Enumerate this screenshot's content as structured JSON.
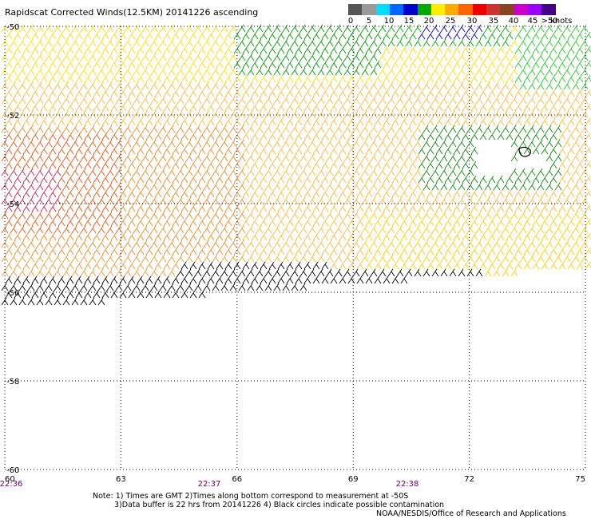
{
  "title": "Rapidscat Corrected Winds(12.5KM) 20141226 ascending",
  "legend": {
    "colors": [
      "#555555",
      "#999999",
      "#00ddff",
      "#0066ff",
      "#0000cc",
      "#00aa00",
      "#ffee00",
      "#ffaa00",
      "#ff6600",
      "#ee0000",
      "#cc3333",
      "#884422",
      "#cc00cc",
      "#9900ff",
      "#440088"
    ],
    "labels": [
      "0",
      "5",
      "10",
      "15",
      "20",
      "25",
      "30",
      "35",
      "40",
      "45",
      ">50"
    ],
    "units": "knots"
  },
  "map": {
    "lat_labels": [
      "-50",
      "-52",
      "-54",
      "-56",
      "-58",
      "-60"
    ],
    "lon_labels": [
      "60",
      "63",
      "66",
      "69",
      "72",
      "75"
    ],
    "time_labels": [
      "22:36",
      "22:37",
      "22:38"
    ],
    "lat_range": [
      -60,
      -50
    ],
    "lon_range": [
      60,
      75
    ],
    "grid": true,
    "wind_barb_region_lat": [
      -56.5,
      -50
    ],
    "contamination_circles": true
  },
  "notes": {
    "line1": "Note: 1) Times are GMT 2)Times along bottom correspond to measurement at -50S",
    "line2": "3)Data buffer is 22 hrs from 20141226 4) Black circles indicate possible contamination"
  },
  "credit": "NOAA/NESDIS/Office of Research and Applications"
}
